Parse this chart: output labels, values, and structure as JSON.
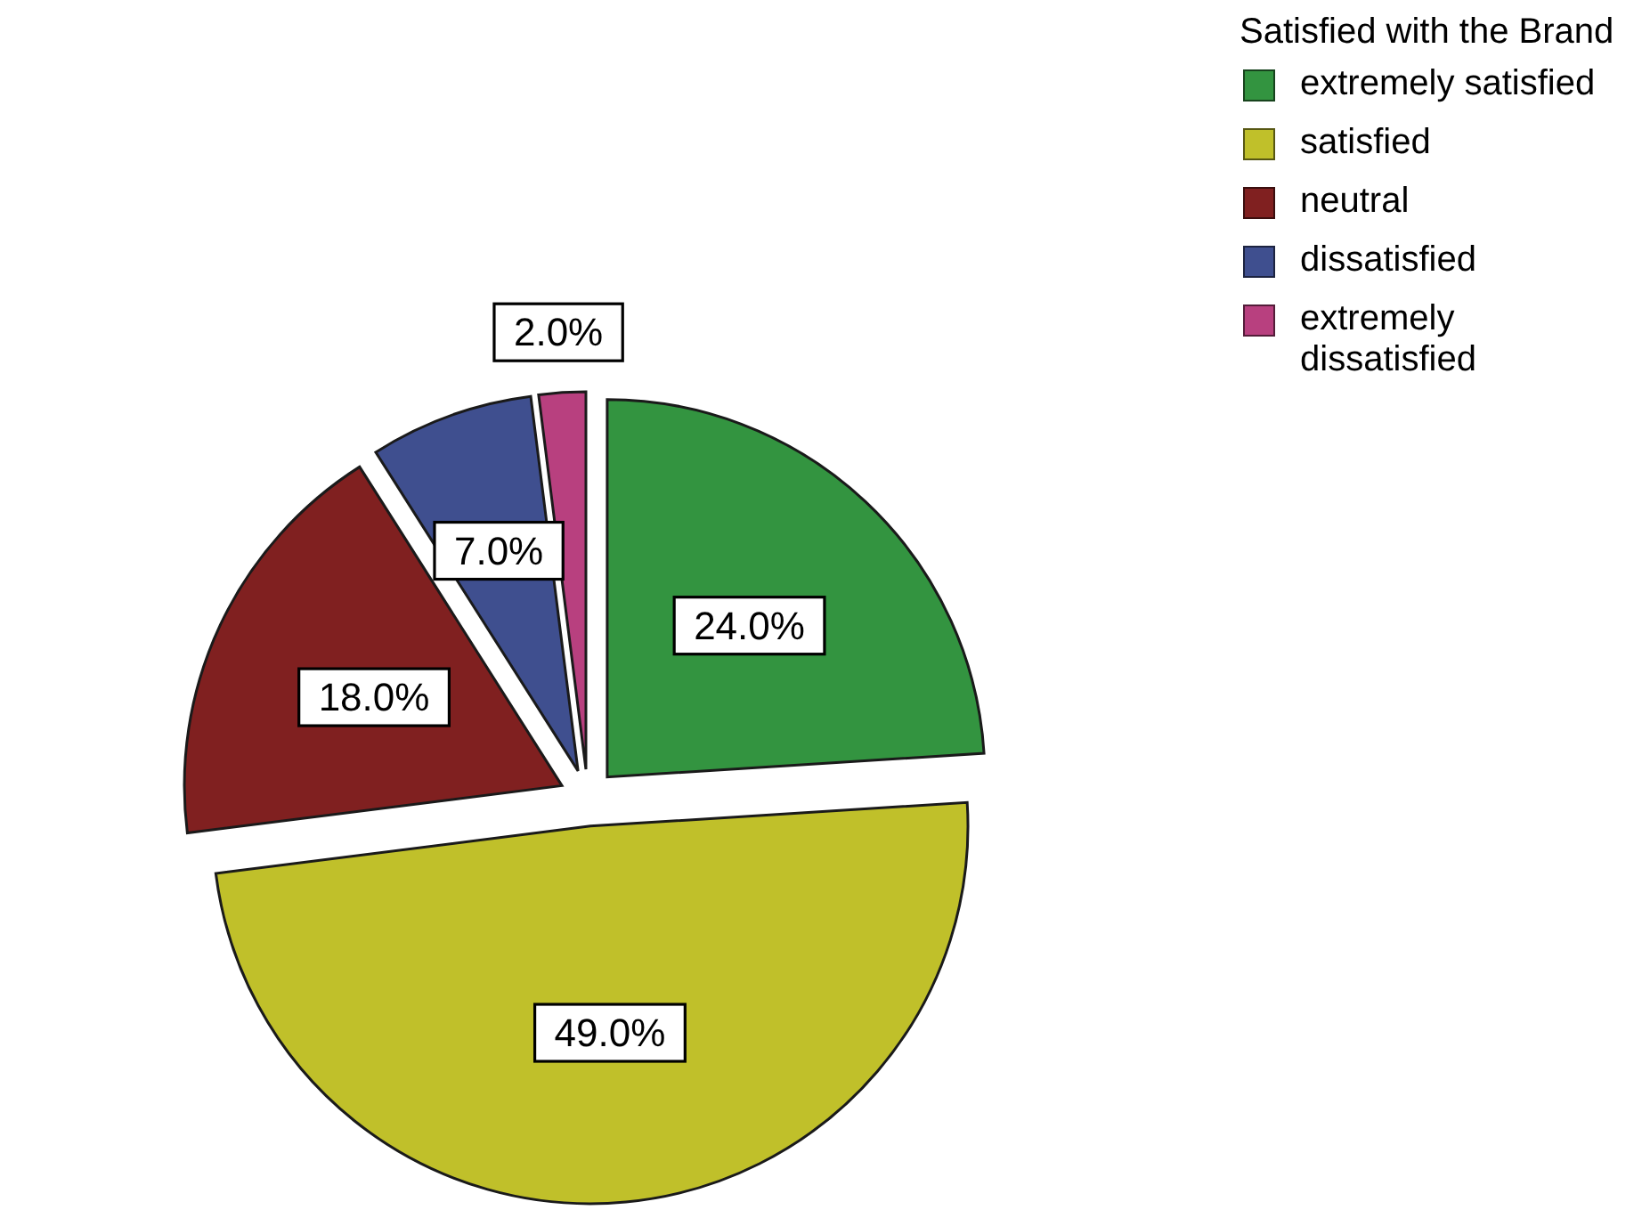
{
  "chart_data": {
    "type": "pie",
    "legend_title": "Satisfied with the Brand",
    "categories": [
      "extremely satisfied",
      "satisfied",
      "neutral",
      "dissatisfied",
      "extremely dissatisfied"
    ],
    "values": [
      24,
      49,
      18,
      7,
      2
    ],
    "colors": [
      "#339440",
      "#c0c02a",
      "#802020",
      "#3f4f8f",
      "#b8407f"
    ],
    "value_labels": [
      "24.0%",
      "49.0%",
      "18.0%",
      "7.0%",
      "2.0%"
    ],
    "legend": "top right"
  }
}
